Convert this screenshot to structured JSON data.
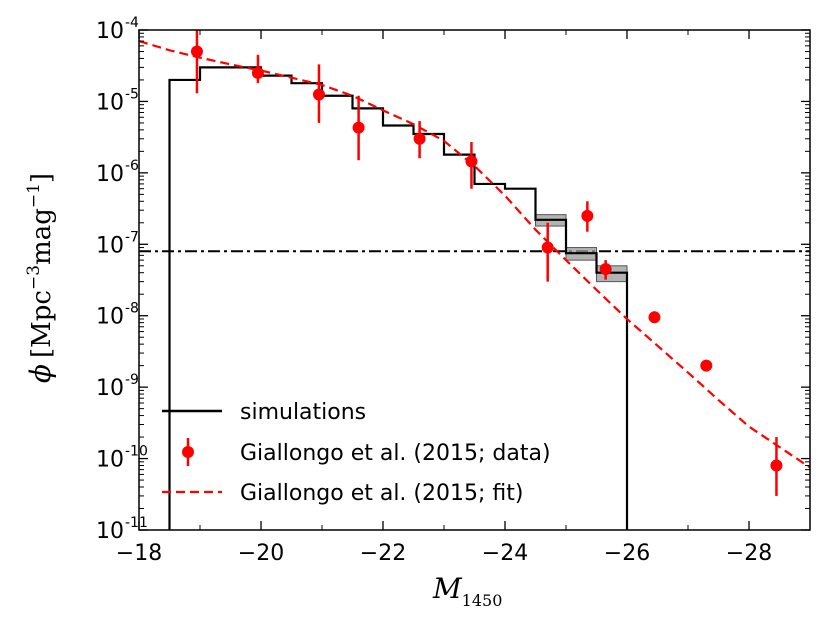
{
  "chart_data": {
    "type": "line",
    "xlabel_main": "M",
    "xlabel_sub": "1450",
    "ylabel_phi": "ϕ",
    "ylabel_open": "[",
    "ylabel_close": "]",
    "ylabel_mpc": "Mpc",
    "ylabel_mpc_exp": "−3",
    "ylabel_mag": "mag",
    "ylabel_mag_exp": "−1",
    "xlim": [
      -18,
      -29
    ],
    "ylim_log10": [
      -11,
      -4
    ],
    "xticks": [
      -18,
      -20,
      -22,
      -24,
      -26,
      -28
    ],
    "xtick_labels": [
      "−18",
      "−20",
      "−22",
      "−24",
      "−26",
      "−28"
    ],
    "yticks_log10": [
      -11,
      -10,
      -9,
      -8,
      -7,
      -6,
      -5,
      -4
    ],
    "ytick_base": "10",
    "ytick_exps": [
      "-11",
      "-10",
      "-9",
      "-8",
      "-7",
      "-6",
      "-5",
      "-4"
    ],
    "threshold_line": {
      "y": 8e-08,
      "style": "dash-dot"
    },
    "series": [
      {
        "name": "simulations",
        "style": "step",
        "color": "#000000",
        "edges": [
          -18.5,
          -19,
          -20,
          -20.5,
          -21,
          -21.5,
          -22,
          -22.5,
          -23,
          -23.5,
          -24,
          -24.5,
          -25,
          -25.5,
          -26
        ],
        "values": [
          2e-05,
          3e-05,
          2.3e-05,
          1.8e-05,
          1.2e-05,
          8e-06,
          4.6e-06,
          3.5e-06,
          1.8e-06,
          7e-07,
          6e-07,
          2.2e-07,
          7.5e-08,
          4e-08
        ],
        "band": [
          null,
          null,
          null,
          null,
          null,
          null,
          null,
          null,
          null,
          null,
          null,
          [
            1.8e-07,
            2.6e-07
          ],
          [
            6e-08,
            9e-08
          ],
          [
            3e-08,
            5e-08
          ]
        ]
      },
      {
        "name": "Giallongo et al. (2015; data)",
        "style": "points",
        "color": "#ff0000",
        "points": [
          {
            "x": -18.95,
            "y": 5e-05,
            "ylo": 1.3e-05,
            "yhi": 0.0001
          },
          {
            "x": -19.95,
            "y": 2.5e-05,
            "ylo": 1.8e-05,
            "yhi": 4.5e-05
          },
          {
            "x": -20.95,
            "y": 1.25e-05,
            "ylo": 5e-06,
            "yhi": 3.3e-05
          },
          {
            "x": -21.6,
            "y": 4.3e-06,
            "ylo": 1.5e-06,
            "yhi": 1.2e-05
          },
          {
            "x": -22.6,
            "y": 3e-06,
            "ylo": 1.6e-06,
            "yhi": 5.3e-06
          },
          {
            "x": -23.45,
            "y": 1.45e-06,
            "ylo": 6e-07,
            "yhi": 2.7e-06
          },
          {
            "x": -24.7,
            "y": 9e-08,
            "ylo": 3e-08,
            "yhi": 2e-07
          },
          {
            "x": -25.35,
            "y": 2.5e-07,
            "ylo": 1.5e-07,
            "yhi": 4e-07
          },
          {
            "x": -25.65,
            "y": 4.5e-08,
            "ylo": 3.2e-08,
            "yhi": 6e-08
          },
          {
            "x": -26.45,
            "y": 9.5e-09,
            "ylo": 8e-09,
            "yhi": 1.15e-08
          },
          {
            "x": -27.3,
            "y": 2e-09,
            "ylo": 1.7e-09,
            "yhi": 2.4e-09
          },
          {
            "x": -28.45,
            "y": 8e-11,
            "ylo": 3e-11,
            "yhi": 2e-10
          }
        ]
      },
      {
        "name": "Giallongo et al. (2015; fit)",
        "style": "dashed",
        "color": "#ff0000",
        "x": [
          -18,
          -18.5,
          -19,
          -19.5,
          -20,
          -20.5,
          -21,
          -21.5,
          -22,
          -22.5,
          -23,
          -23.5,
          -24,
          -24.5,
          -25,
          -25.5,
          -26,
          -26.5,
          -27,
          -27.5,
          -28,
          -28.5,
          -29
        ],
        "y": [
          7e-05,
          5.2e-05,
          4.1e-05,
          3.3e-05,
          2.7e-05,
          2.15e-05,
          1.7e-05,
          1.2e-05,
          7.5e-06,
          4.8e-06,
          2.8e-06,
          1.25e-06,
          4.8e-07,
          1.6e-07,
          6e-08,
          2.3e-08,
          9e-09,
          3.8e-09,
          1.6e-09,
          6.6e-10,
          2.8e-10,
          1.45e-10,
          7.5e-11
        ]
      }
    ],
    "legend": {
      "placement": "lower-left",
      "items": [
        "simulations",
        "Giallongo et al. (2015; data)",
        "Giallongo et al. (2015; fit)"
      ]
    }
  }
}
